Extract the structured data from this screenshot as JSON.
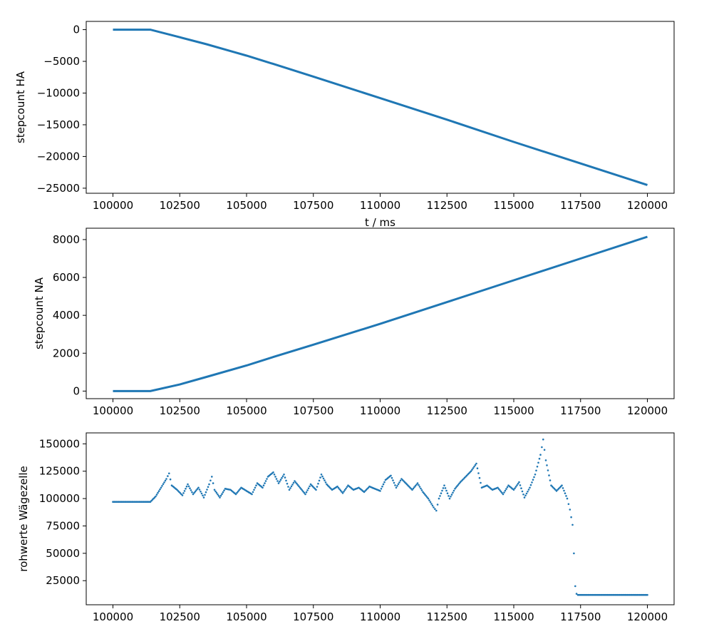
{
  "chart_data": [
    {
      "type": "line",
      "xlabel": "t / ms",
      "ylabel": "stepcount HA",
      "xlim": [
        99000,
        121000
      ],
      "ylim": [
        -25800,
        1300
      ],
      "xticks": [
        100000,
        102500,
        105000,
        107500,
        110000,
        112500,
        115000,
        117500,
        120000
      ],
      "xtick_labels": [
        "100000",
        "102500",
        "105000",
        "107500",
        "110000",
        "112500",
        "115000",
        "117500",
        "120000"
      ],
      "yticks": [
        0,
        -5000,
        -10000,
        -15000,
        -20000,
        -25000
      ],
      "ytick_labels": [
        "0",
        "−5000",
        "−10000",
        "−15000",
        "−20000",
        "−25000"
      ],
      "grid": false,
      "color": "#1f77b4",
      "series": [
        {
          "x": [
            100000,
            101300,
            101400,
            102500,
            103500,
            104500,
            105000,
            106000,
            107500,
            110000,
            112500,
            115000,
            117500,
            120000
          ],
          "y": [
            0,
            0,
            0,
            -1200,
            -2300,
            -3500,
            -4100,
            -5400,
            -7400,
            -10800,
            -14200,
            -17700,
            -21100,
            -24500
          ]
        }
      ]
    },
    {
      "type": "line",
      "xlabel": "",
      "ylabel": "stepcount NA",
      "xlim": [
        99000,
        121000
      ],
      "ylim": [
        -400,
        8600
      ],
      "xticks": [
        100000,
        102500,
        105000,
        107500,
        110000,
        112500,
        115000,
        117500,
        120000
      ],
      "xtick_labels": [
        "100000",
        "102500",
        "105000",
        "107500",
        "110000",
        "112500",
        "115000",
        "117500",
        "120000"
      ],
      "yticks": [
        0,
        2000,
        4000,
        6000,
        8000
      ],
      "ytick_labels": [
        "0",
        "2000",
        "4000",
        "6000",
        "8000"
      ],
      "grid": false,
      "color": "#1f77b4",
      "series": [
        {
          "x": [
            100000,
            101300,
            101400,
            102500,
            103500,
            105000,
            106000,
            107500,
            110000,
            112500,
            115000,
            117500,
            120000
          ],
          "y": [
            0,
            0,
            0,
            350,
            750,
            1350,
            1800,
            2450,
            3550,
            4700,
            5850,
            7000,
            8150
          ]
        }
      ]
    },
    {
      "type": "scatter",
      "xlabel": "",
      "ylabel": "rohwerte Wägezelle",
      "xlim": [
        99000,
        121000
      ],
      "ylim": [
        3000,
        160000
      ],
      "xticks": [
        100000,
        102500,
        105000,
        107500,
        110000,
        112500,
        115000,
        117500,
        120000
      ],
      "xtick_labels": [
        "100000",
        "102500",
        "105000",
        "107500",
        "110000",
        "112500",
        "115000",
        "117500",
        "120000"
      ],
      "yticks": [
        25000,
        50000,
        75000,
        100000,
        125000,
        150000
      ],
      "ytick_labels": [
        "25000",
        "50000",
        "75000",
        "100000",
        "125000",
        "150000"
      ],
      "grid": false,
      "color": "#1f77b4",
      "series": [
        {
          "x": [
            100000,
            100400,
            100800,
            101200,
            101400,
            101600,
            101800,
            102000,
            102100,
            102200,
            102400,
            102600,
            102800,
            103000,
            103200,
            103400,
            103600,
            103700,
            103800,
            104000,
            104200,
            104400,
            104600,
            104800,
            105000,
            105200,
            105400,
            105600,
            105800,
            106000,
            106200,
            106400,
            106600,
            106800,
            107000,
            107200,
            107400,
            107600,
            107800,
            108000,
            108200,
            108400,
            108600,
            108800,
            109000,
            109200,
            109400,
            109600,
            109800,
            110000,
            110200,
            110400,
            110600,
            110800,
            111000,
            111200,
            111400,
            111600,
            111800,
            112000,
            112100,
            112200,
            112400,
            112600,
            112800,
            113000,
            113200,
            113400,
            113600,
            113800,
            114000,
            114200,
            114400,
            114600,
            114800,
            115000,
            115200,
            115400,
            115600,
            115800,
            116000,
            116100,
            116200,
            116400,
            116600,
            116800,
            117000,
            117100,
            117200,
            117250,
            117300,
            117350,
            117400,
            117600,
            118000,
            118500,
            119000,
            119500,
            120000
          ],
          "y": [
            97000,
            97000,
            97000,
            97000,
            97000,
            102000,
            110000,
            118000,
            123000,
            112000,
            108000,
            103000,
            113000,
            104000,
            110000,
            101000,
            113000,
            120000,
            108000,
            101000,
            109000,
            108000,
            104000,
            110000,
            107000,
            104000,
            114000,
            110000,
            120000,
            124000,
            114000,
            122000,
            108000,
            116000,
            110000,
            104000,
            113000,
            108000,
            122000,
            113000,
            108000,
            111000,
            105000,
            112000,
            108000,
            110000,
            106000,
            111000,
            109000,
            107000,
            117000,
            121000,
            110000,
            118000,
            113000,
            108000,
            114000,
            106000,
            100000,
            92000,
            89000,
            100000,
            112000,
            100000,
            109000,
            115000,
            120000,
            125000,
            132000,
            110000,
            112000,
            108000,
            110000,
            104000,
            112000,
            108000,
            115000,
            101000,
            110000,
            122000,
            140000,
            154000,
            135000,
            112000,
            107000,
            112000,
            100000,
            90000,
            76000,
            50000,
            20000,
            13000,
            12000,
            12000,
            12000,
            12000,
            12000,
            12000,
            12000
          ]
        }
      ]
    }
  ]
}
